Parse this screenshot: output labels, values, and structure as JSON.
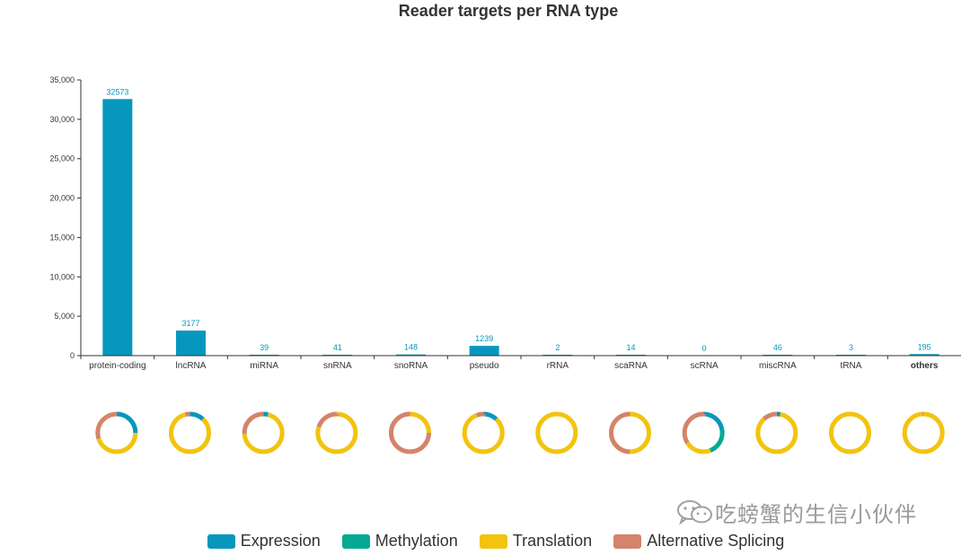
{
  "chart_data": {
    "type": "bar",
    "title": "Reader targets per RNA type",
    "categories": [
      "protein-coding",
      "lncRNA",
      "miRNA",
      "snRNA",
      "snoRNA",
      "pseudo",
      "rRNA",
      "scaRNA",
      "scRNA",
      "miscRNA",
      "tRNA",
      "others"
    ],
    "values": [
      32573,
      3177,
      39,
      41,
      148,
      1239,
      2,
      14,
      0,
      46,
      3,
      195
    ],
    "value_labels": [
      "32573",
      "3177",
      "39",
      "41",
      "148",
      "1239",
      "2",
      "14",
      "0",
      "46",
      "3",
      "195"
    ],
    "ylim": [
      0,
      35000
    ],
    "yticks": [
      0,
      5000,
      10000,
      15000,
      20000,
      25000,
      30000,
      35000
    ],
    "ytick_labels": [
      "0",
      "5,000",
      "10,000",
      "15,000",
      "20,000",
      "25,000",
      "30,000",
      "35,000"
    ],
    "grid": false,
    "bar_color": "#0797bd",
    "legend": {
      "placement": "bottom",
      "items": [
        {
          "name": "Expression",
          "color": "#0797bd"
        },
        {
          "name": "Methylation",
          "color": "#04a994"
        },
        {
          "name": "Translation",
          "color": "#f2c40e"
        },
        {
          "name": "Alternative Splicing",
          "color": "#d4846a"
        }
      ]
    },
    "donuts": [
      {
        "category": "protein-coding",
        "fractions": [
          0.25,
          0.0,
          0.45,
          0.3
        ]
      },
      {
        "category": "lncRNA",
        "fractions": [
          0.12,
          0.0,
          0.84,
          0.04
        ]
      },
      {
        "category": "miRNA",
        "fractions": [
          0.04,
          0.0,
          0.7,
          0.26
        ]
      },
      {
        "category": "snRNA",
        "fractions": [
          0.0,
          0.0,
          0.8,
          0.2
        ]
      },
      {
        "category": "snoRNA",
        "fractions": [
          0.0,
          0.0,
          0.25,
          0.75
        ]
      },
      {
        "category": "pseudo",
        "fractions": [
          0.12,
          0.0,
          0.82,
          0.06
        ]
      },
      {
        "category": "rRNA",
        "fractions": [
          0.0,
          0.0,
          1.0,
          0.0
        ]
      },
      {
        "category": "scaRNA",
        "fractions": [
          0.0,
          0.0,
          0.5,
          0.5
        ]
      },
      {
        "category": "scRNA",
        "fractions": [
          0.22,
          0.22,
          0.22,
          0.34
        ]
      },
      {
        "category": "miscRNA",
        "fractions": [
          0.03,
          0.0,
          0.85,
          0.12
        ]
      },
      {
        "category": "tRNA",
        "fractions": [
          0.0,
          0.0,
          1.0,
          0.0
        ]
      },
      {
        "category": "others",
        "fractions": [
          0.0,
          0.0,
          0.99,
          0.01
        ]
      }
    ]
  },
  "watermark": {
    "text": "吃螃蟹的生信小伙伴",
    "icon": "wechat-icon"
  }
}
